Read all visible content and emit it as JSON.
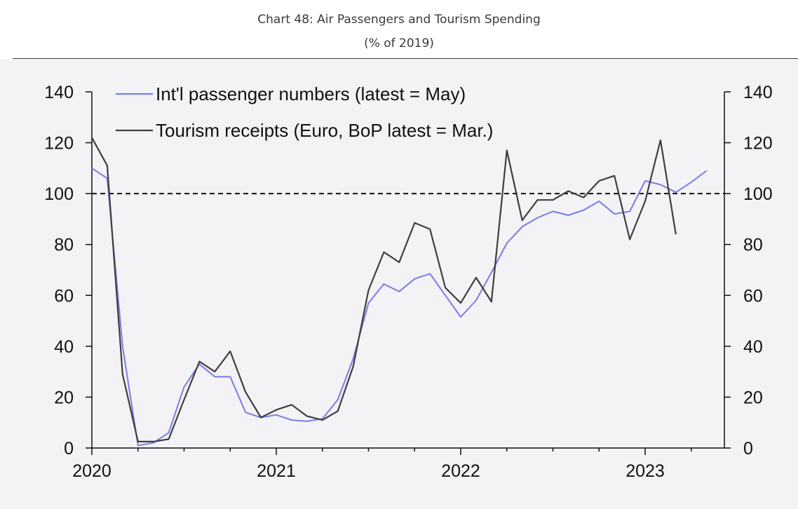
{
  "header": {
    "title": "Chart 48: Air Passengers and Tourism Spending",
    "subtitle": "(% of 2019)"
  },
  "chart_data": {
    "type": "line",
    "title": "Chart 48: Air Passengers and Tourism Spending",
    "subtitle": "(% of 2019)",
    "xlabel": "",
    "ylabel": "",
    "x_ticks": [
      "2020",
      "2021",
      "2022",
      "2023"
    ],
    "ylim": [
      0,
      140
    ],
    "yticks": [
      0,
      20,
      40,
      60,
      80,
      100,
      120,
      140
    ],
    "y2lim": [
      0,
      140
    ],
    "y2ticks": [
      0,
      20,
      40,
      60,
      80,
      100,
      120,
      140
    ],
    "reference_line": {
      "y": 100,
      "style": "dashed"
    },
    "legend_position": "top-left",
    "grid": false,
    "series": [
      {
        "name": "Int'l passenger numbers (latest = May)",
        "color": "#7b7be8",
        "x": [
          "2020-01",
          "2020-02",
          "2020-03",
          "2020-04",
          "2020-05",
          "2020-06",
          "2020-07",
          "2020-08",
          "2020-09",
          "2020-10",
          "2020-11",
          "2020-12",
          "2021-01",
          "2021-02",
          "2021-03",
          "2021-04",
          "2021-05",
          "2021-06",
          "2021-07",
          "2021-08",
          "2021-09",
          "2021-10",
          "2021-11",
          "2021-12",
          "2022-01",
          "2022-02",
          "2022-03",
          "2022-04",
          "2022-05",
          "2022-06",
          "2022-07",
          "2022-08",
          "2022-09",
          "2022-10",
          "2022-11",
          "2022-12",
          "2023-01",
          "2023-02",
          "2023-03",
          "2023-04",
          "2023-05"
        ],
        "values": [
          110,
          106,
          40,
          1,
          2,
          6,
          24,
          33,
          28,
          28,
          14,
          12,
          13,
          11,
          10.5,
          11.5,
          19,
          35,
          57,
          64.5,
          61.5,
          66.5,
          68.5,
          60,
          51.5,
          58,
          69,
          80.5,
          87,
          90.5,
          93,
          91.5,
          93.5,
          97,
          92,
          93,
          105,
          103.5,
          100.5,
          104.5,
          109
        ]
      },
      {
        "name": "Tourism receipts (Euro, BoP latest = Mar.)",
        "color": "#3f3f3f",
        "x": [
          "2020-01",
          "2020-02",
          "2020-03",
          "2020-04",
          "2020-05",
          "2020-06",
          "2020-07",
          "2020-08",
          "2020-09",
          "2020-10",
          "2020-11",
          "2020-12",
          "2021-01",
          "2021-02",
          "2021-03",
          "2021-04",
          "2021-05",
          "2021-06",
          "2021-07",
          "2021-08",
          "2021-09",
          "2021-10",
          "2021-11",
          "2021-12",
          "2022-01",
          "2022-02",
          "2022-03",
          "2022-04",
          "2022-05",
          "2022-06",
          "2022-07",
          "2022-08",
          "2022-09",
          "2022-10",
          "2022-11",
          "2022-12",
          "2023-01",
          "2023-02",
          "2023-03"
        ],
        "values": [
          122,
          111,
          29,
          2.5,
          2.5,
          3.5,
          19,
          34,
          30,
          38,
          22,
          12,
          15,
          17,
          12.5,
          11,
          14.5,
          32,
          62,
          77,
          73,
          88.5,
          86,
          63,
          57,
          67,
          57.5,
          117,
          89.5,
          97.5,
          97.5,
          101,
          98.5,
          105,
          107,
          82,
          97,
          121,
          84
        ]
      }
    ]
  }
}
